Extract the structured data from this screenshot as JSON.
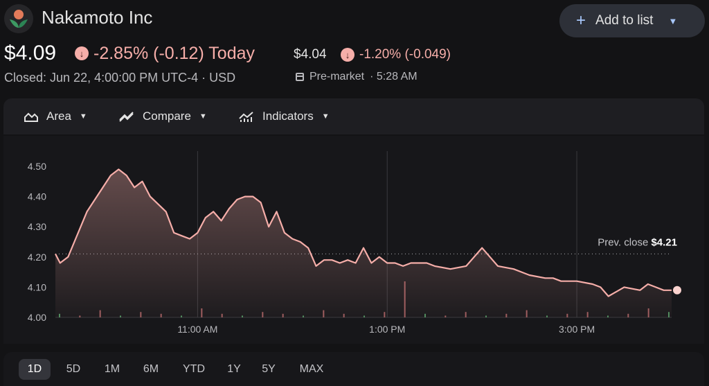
{
  "header": {
    "company": "Nakamoto Inc",
    "add_button": "Add to list"
  },
  "quote": {
    "price": "$4.09",
    "change": "-2.85% (-0.12) Today",
    "closed": "Closed: Jun 22, 4:00:00 PM UTC-4 · USD",
    "premarket_price": "$4.04",
    "premarket_change": "-1.20% (-0.049)",
    "premarket_label": "Pre-market",
    "premarket_time": "· 5:28 AM"
  },
  "toolbar": {
    "area": "Area",
    "compare": "Compare",
    "indicators": "Indicators"
  },
  "ranges": [
    "1D",
    "5D",
    "1M",
    "6M",
    "YTD",
    "1Y",
    "5Y",
    "MAX"
  ],
  "active_range": "1D",
  "colors": {
    "line": "#f6aea9",
    "negative": "#f6aea9",
    "volume_up": "#4c8a5c",
    "volume_down": "#9b5a5c"
  },
  "chart_data": {
    "type": "area",
    "x_ticks": [
      "11:00 AM",
      "1:00 PM",
      "3:00 PM"
    ],
    "y_ticks": [
      "4.50",
      "4.40",
      "4.30",
      "4.20",
      "4.10",
      "4.00"
    ],
    "ylim": [
      4.0,
      4.55
    ],
    "prev_close": 4.21,
    "prev_close_label": "Prev. close",
    "prev_close_value": "$4.21",
    "series_minutes_from_open": [
      0,
      3,
      8,
      12,
      20,
      30,
      35,
      40,
      45,
      50,
      55,
      60,
      70,
      75,
      80,
      85,
      90,
      95,
      100,
      105,
      110,
      115,
      120,
      125,
      130,
      135,
      140,
      145,
      150,
      155,
      160,
      165,
      170,
      175,
      180,
      185,
      190,
      195,
      200,
      205,
      210,
      215,
      220,
      225,
      230,
      235,
      240,
      250,
      260,
      270,
      280,
      290,
      300,
      310,
      315,
      320,
      330,
      340,
      345,
      350,
      360,
      370,
      375,
      380,
      385,
      390
    ],
    "series_values": [
      4.21,
      4.18,
      4.2,
      4.25,
      4.35,
      4.43,
      4.47,
      4.49,
      4.47,
      4.43,
      4.45,
      4.4,
      4.35,
      4.28,
      4.27,
      4.26,
      4.28,
      4.33,
      4.35,
      4.32,
      4.36,
      4.39,
      4.4,
      4.4,
      4.38,
      4.3,
      4.35,
      4.28,
      4.26,
      4.25,
      4.23,
      4.17,
      4.19,
      4.19,
      4.18,
      4.19,
      4.18,
      4.23,
      4.18,
      4.2,
      4.18,
      4.18,
      4.17,
      4.18,
      4.18,
      4.18,
      4.17,
      4.16,
      4.17,
      4.23,
      4.17,
      4.16,
      4.14,
      4.13,
      4.13,
      4.12,
      4.12,
      4.11,
      4.1,
      4.07,
      4.1,
      4.09,
      4.11,
      4.1,
      4.09,
      4.09
    ],
    "close_point": 4.09,
    "volume_bars": [
      2,
      1,
      4,
      1,
      3,
      2,
      1,
      5,
      2,
      1,
      3,
      2,
      1,
      4,
      2,
      1,
      3,
      20,
      2,
      1,
      3,
      1,
      2,
      4,
      1,
      2,
      3,
      1,
      2,
      5,
      3
    ]
  }
}
